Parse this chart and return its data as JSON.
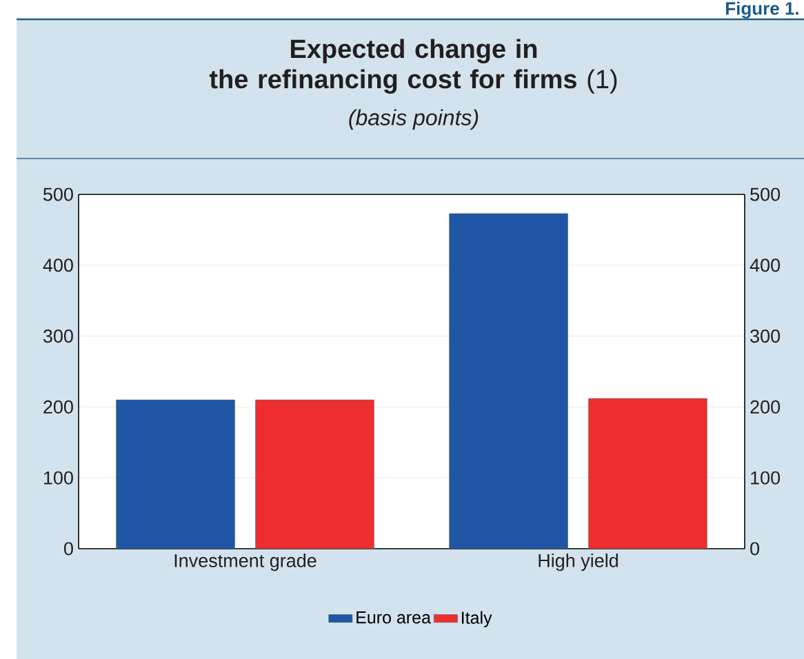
{
  "chart_data": {
    "type": "bar",
    "title": "**Expected change in the refinancing cost for firms** (1)",
    "subtitle": "*(basis points)*",
    "annotations": [
      "Figure 1."
    ],
    "categories": [
      "Investment grade",
      "High yield"
    ],
    "series": [
      {
        "name": "Euro area",
        "color": "#1f56a5",
        "values": [
          210,
          473
        ]
      },
      {
        "name": "Italy",
        "color": "#ee2e2e",
        "values": [
          210,
          212
        ]
      }
    ],
    "ylim": [
      0,
      500
    ],
    "yticks": [
      0,
      100,
      200,
      300,
      400,
      500
    ],
    "y2lim": [
      0,
      500
    ],
    "y2ticks": [
      0,
      100,
      200,
      300,
      400,
      500
    ],
    "grid": "y",
    "legend": "bottom"
  }
}
